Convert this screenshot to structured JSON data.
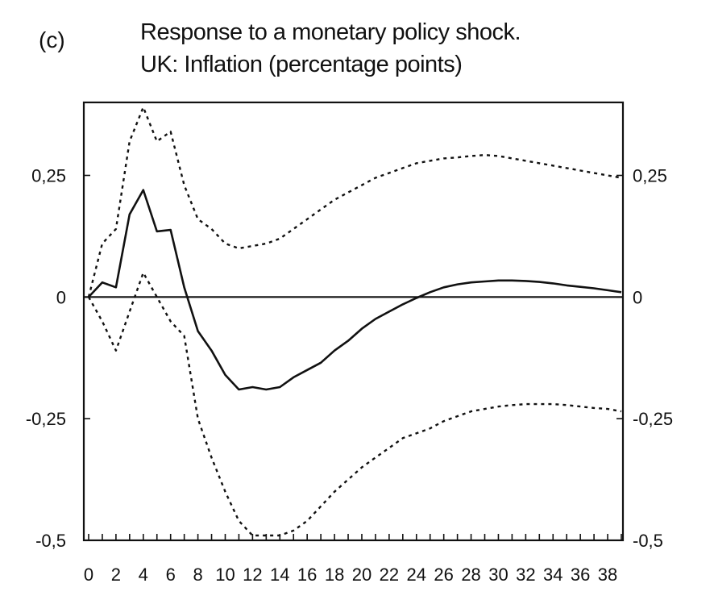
{
  "panel_label": "(c)",
  "chart_data": {
    "type": "line",
    "title": "Response to a monetary policy shock.",
    "subtitle": "UK: Inflation (percentage points)",
    "xlabel": "",
    "ylabel": "",
    "xlim": [
      0,
      39
    ],
    "ylim": [
      -0.5,
      0.4
    ],
    "x_ticks": [
      0,
      2,
      4,
      6,
      8,
      10,
      12,
      14,
      16,
      18,
      20,
      22,
      24,
      26,
      28,
      30,
      32,
      34,
      36,
      38
    ],
    "y_ticks": [
      -0.5,
      -0.25,
      0,
      0.25
    ],
    "y_tick_labels": [
      "-0,5",
      "-0,25",
      "0",
      "0,25"
    ],
    "x": [
      0,
      1,
      2,
      3,
      4,
      5,
      6,
      7,
      8,
      9,
      10,
      11,
      12,
      13,
      14,
      15,
      16,
      17,
      18,
      19,
      20,
      21,
      22,
      23,
      24,
      25,
      26,
      27,
      28,
      29,
      30,
      31,
      32,
      33,
      34,
      35,
      36,
      37,
      38,
      39
    ],
    "series": [
      {
        "style": "solid",
        "values": [
          0,
          0.03,
          0.02,
          0.17,
          0.22,
          0.135,
          0.138,
          0.02,
          -0.07,
          -0.11,
          -0.16,
          -0.19,
          -0.185,
          -0.19,
          -0.185,
          -0.165,
          -0.15,
          -0.135,
          -0.11,
          -0.09,
          -0.065,
          -0.045,
          -0.03,
          -0.015,
          -0.002,
          0.01,
          0.02,
          0.026,
          0.03,
          0.032,
          0.034,
          0.034,
          0.033,
          0.031,
          0.028,
          0.024,
          0.021,
          0.018,
          0.014,
          0.01
        ]
      },
      {
        "style": "dotted",
        "values": [
          0,
          0.11,
          0.14,
          0.32,
          0.39,
          0.32,
          0.34,
          0.23,
          0.16,
          0.14,
          0.11,
          0.1,
          0.105,
          0.11,
          0.12,
          0.14,
          0.16,
          0.18,
          0.2,
          0.215,
          0.23,
          0.245,
          0.255,
          0.265,
          0.275,
          0.28,
          0.285,
          0.287,
          0.29,
          0.292,
          0.29,
          0.285,
          0.28,
          0.275,
          0.27,
          0.265,
          0.26,
          0.255,
          0.25,
          0.245
        ]
      },
      {
        "style": "dotted",
        "values": [
          0,
          -0.05,
          -0.11,
          -0.03,
          0.05,
          0.0,
          -0.05,
          -0.08,
          -0.25,
          -0.33,
          -0.4,
          -0.46,
          -0.49,
          -0.49,
          -0.49,
          -0.48,
          -0.46,
          -0.43,
          -0.4,
          -0.375,
          -0.35,
          -0.33,
          -0.31,
          -0.29,
          -0.28,
          -0.27,
          -0.255,
          -0.245,
          -0.235,
          -0.23,
          -0.225,
          -0.222,
          -0.22,
          -0.22,
          -0.22,
          -0.222,
          -0.225,
          -0.228,
          -0.23,
          -0.235
        ]
      }
    ]
  }
}
